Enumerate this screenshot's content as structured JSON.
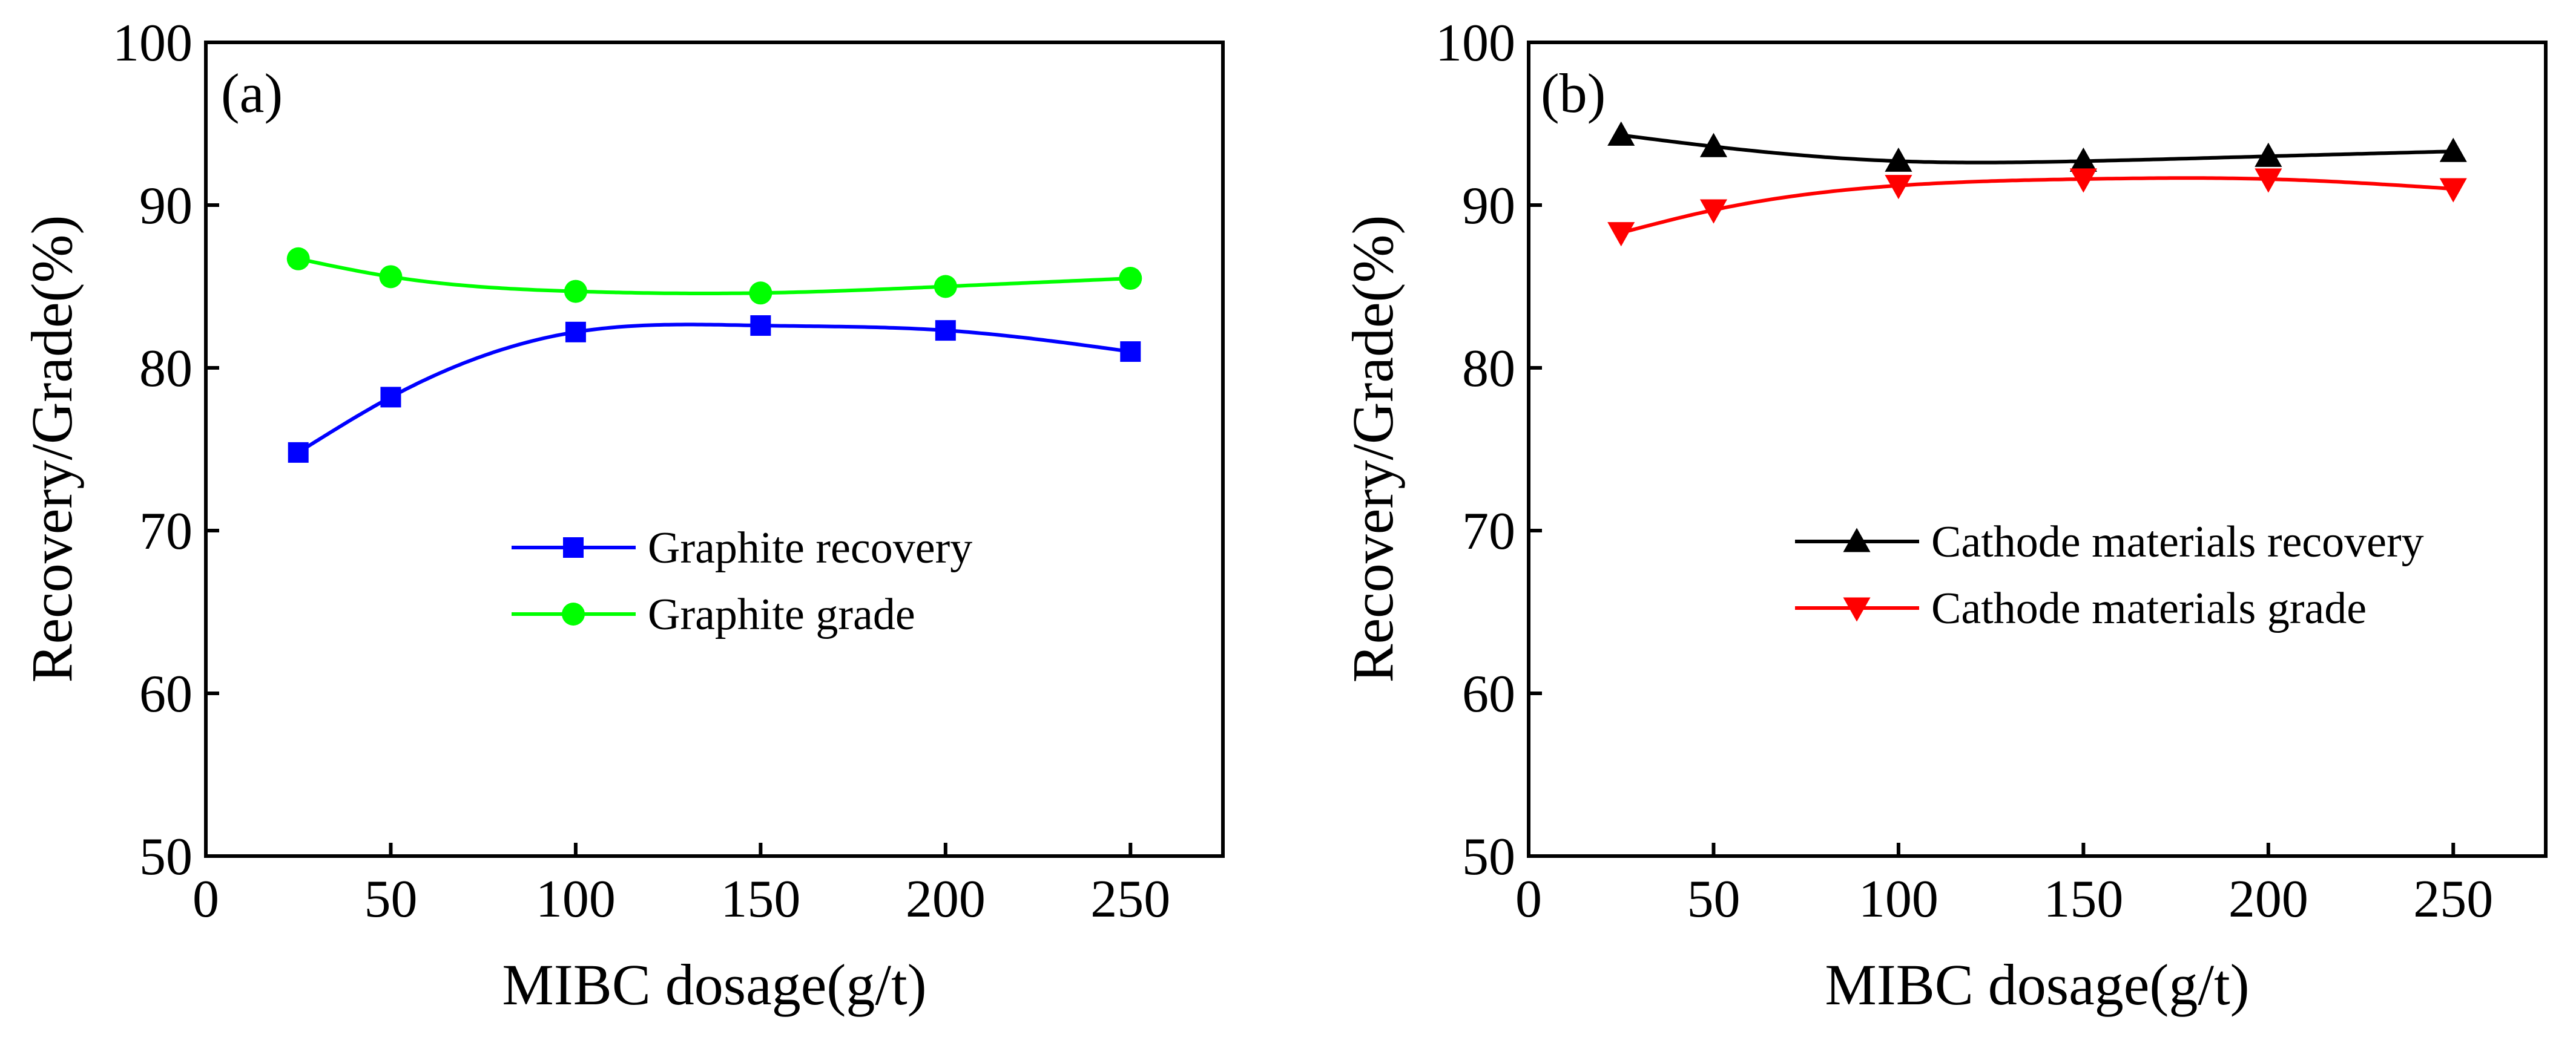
{
  "chart_data": [
    {
      "type": "line",
      "panel_label": "(a)",
      "xlabel": "MIBC dosage(g/t)",
      "ylabel": "Recovery/Grade(%)",
      "xlim": [
        0,
        275
      ],
      "ylim": [
        50,
        100
      ],
      "xticks": [
        0,
        50,
        100,
        150,
        200,
        250
      ],
      "yticks": [
        50,
        60,
        70,
        80,
        90,
        100
      ],
      "legend_position": "center-right",
      "x": [
        25,
        50,
        100,
        150,
        200,
        250
      ],
      "series": [
        {
          "name": "Graphite recovery",
          "values": [
            74.8,
            78.2,
            82.2,
            82.6,
            82.3,
            81.0
          ],
          "color": "#0000ff",
          "marker": "square"
        },
        {
          "name": "Graphite grade",
          "values": [
            86.7,
            85.6,
            84.7,
            84.6,
            85.0,
            85.5
          ],
          "color": "#00ff00",
          "marker": "circle"
        }
      ]
    },
    {
      "type": "line",
      "panel_label": "(b)",
      "xlabel": "MIBC dosage(g/t)",
      "ylabel": "Recovery/Grade(%)",
      "xlim": [
        0,
        275
      ],
      "ylim": [
        50,
        100
      ],
      "xticks": [
        0,
        50,
        100,
        150,
        200,
        250
      ],
      "yticks": [
        50,
        60,
        70,
        80,
        90,
        100
      ],
      "legend_position": "center-right",
      "x": [
        25,
        50,
        100,
        150,
        200,
        250
      ],
      "series": [
        {
          "name": "Cathode materials recovery",
          "values": [
            94.3,
            93.6,
            92.7,
            92.7,
            93.0,
            93.3
          ],
          "color": "#000000",
          "marker": "triangle-up"
        },
        {
          "name": "Cathode materials grade",
          "values": [
            88.3,
            89.7,
            91.2,
            91.6,
            91.6,
            91.0
          ],
          "color": "#ff0000",
          "marker": "triangle-down"
        }
      ]
    }
  ]
}
